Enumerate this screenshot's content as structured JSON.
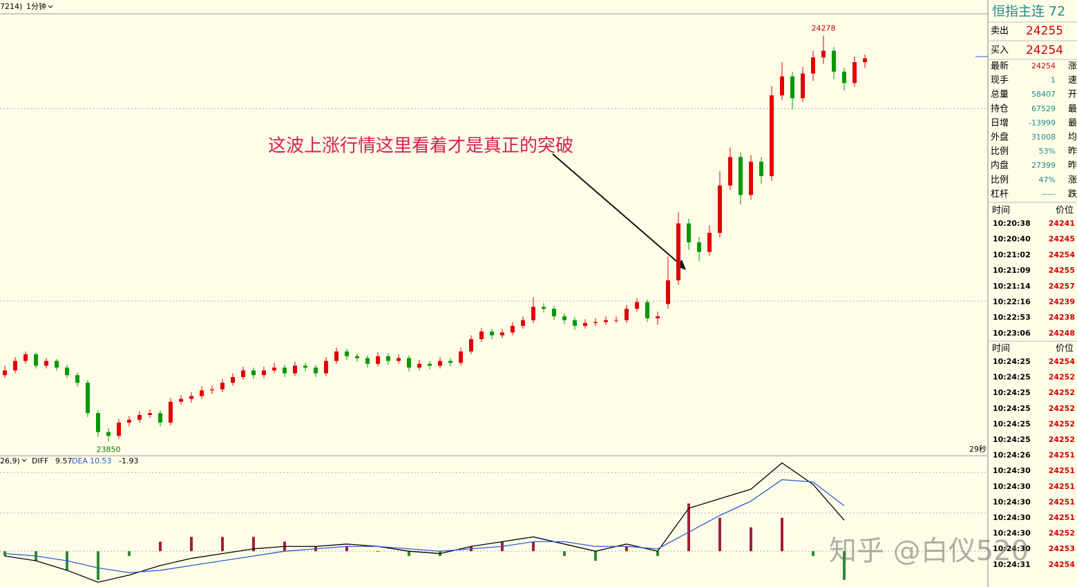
{
  "toolbar": {
    "code": "7214)",
    "period": "1分钟"
  },
  "chart_data": [
    {
      "type": "candlestick",
      "ylim": [
        23835,
        24301
      ],
      "ref_lines": [
        24201,
        23998
      ],
      "up_color": "#e00000",
      "down_color": "#009900",
      "annotation": "这波上涨行情这里看着才是真正的突破",
      "countdown": "29秒",
      "candles": [
        [
          23920,
          23930,
          23917,
          23925
        ],
        [
          23925,
          23939,
          23922,
          23935
        ],
        [
          23935,
          23945,
          23932,
          23942
        ],
        [
          23942,
          23944,
          23927,
          23930
        ],
        [
          23930,
          23938,
          23927,
          23935
        ],
        [
          23935,
          23937,
          23925,
          23928
        ],
        [
          23928,
          23931,
          23917,
          23920
        ],
        [
          23920,
          23923,
          23908,
          23912
        ],
        [
          23912,
          23915,
          23876,
          23880
        ],
        [
          23880,
          23883,
          23855,
          23860
        ],
        [
          23860,
          23864,
          23850,
          23856
        ],
        [
          23856,
          23874,
          23853,
          23870
        ],
        [
          23870,
          23877,
          23866,
          23873
        ],
        [
          23873,
          23882,
          23870,
          23878
        ],
        [
          23878,
          23884,
          23875,
          23880
        ],
        [
          23880,
          23883,
          23866,
          23870
        ],
        [
          23870,
          23896,
          23867,
          23892
        ],
        [
          23892,
          23899,
          23889,
          23895
        ],
        [
          23895,
          23902,
          23891,
          23898
        ],
        [
          23898,
          23908,
          23895,
          23904
        ],
        [
          23904,
          23909,
          23900,
          23905
        ],
        [
          23905,
          23916,
          23902,
          23912
        ],
        [
          23912,
          23922,
          23909,
          23918
        ],
        [
          23918,
          23929,
          23915,
          23925
        ],
        [
          23925,
          23928,
          23916,
          23920
        ],
        [
          23920,
          23929,
          23917,
          23925
        ],
        [
          23925,
          23933,
          23922,
          23928
        ],
        [
          23928,
          23931,
          23918,
          23922
        ],
        [
          23922,
          23934,
          23919,
          23930
        ],
        [
          23930,
          23933,
          23924,
          23928
        ],
        [
          23928,
          23931,
          23918,
          23922
        ],
        [
          23922,
          23939,
          23919,
          23935
        ],
        [
          23935,
          23949,
          23932,
          23945
        ],
        [
          23945,
          23948,
          23936,
          23940
        ],
        [
          23940,
          23943,
          23934,
          23938
        ],
        [
          23938,
          23941,
          23928,
          23932
        ],
        [
          23932,
          23944,
          23929,
          23940
        ],
        [
          23940,
          23943,
          23931,
          23935
        ],
        [
          23935,
          23942,
          23932,
          23938
        ],
        [
          23938,
          23941,
          23924,
          23928
        ],
        [
          23928,
          23936,
          23925,
          23932
        ],
        [
          23932,
          23935,
          23926,
          23930
        ],
        [
          23930,
          23939,
          23927,
          23935
        ],
        [
          23935,
          23938,
          23929,
          23933
        ],
        [
          23933,
          23949,
          23930,
          23945
        ],
        [
          23945,
          23962,
          23942,
          23958
        ],
        [
          23958,
          23970,
          23955,
          23966
        ],
        [
          23966,
          23969,
          23958,
          23962
        ],
        [
          23962,
          23969,
          23959,
          23965
        ],
        [
          23965,
          23976,
          23962,
          23972
        ],
        [
          23972,
          23982,
          23969,
          23978
        ],
        [
          23978,
          24002,
          23975,
          23992
        ],
        [
          23992,
          23996,
          23986,
          23990
        ],
        [
          23990,
          23993,
          23978,
          23982
        ],
        [
          23982,
          23985,
          23974,
          23978
        ],
        [
          23978,
          23981,
          23968,
          23972
        ],
        [
          23972,
          23979,
          23969,
          23975
        ],
        [
          23975,
          23980,
          23972,
          23976
        ],
        [
          23976,
          23982,
          23973,
          23978
        ],
        [
          23978,
          23982,
          23975,
          23978
        ],
        [
          23978,
          23994,
          23975,
          23990
        ],
        [
          23990,
          24001,
          23987,
          23997
        ],
        [
          23997,
          24000,
          23976,
          23980
        ],
        [
          23980,
          23987,
          23973,
          23982
        ],
        [
          23995,
          24045,
          23990,
          24020
        ],
        [
          24020,
          24092,
          24015,
          24080
        ],
        [
          24080,
          24085,
          24052,
          24060
        ],
        [
          24060,
          24066,
          24040,
          24050
        ],
        [
          24050,
          24078,
          24046,
          24070
        ],
        [
          24070,
          24135,
          24065,
          24120
        ],
        [
          24120,
          24160,
          24115,
          24150
        ],
        [
          24150,
          24155,
          24100,
          24110
        ],
        [
          24110,
          24152,
          24105,
          24145
        ],
        [
          24145,
          24150,
          24122,
          24130
        ],
        [
          24130,
          24225,
          24125,
          24215
        ],
        [
          24215,
          24250,
          24210,
          24235
        ],
        [
          24235,
          24240,
          24200,
          24212
        ],
        [
          24212,
          24245,
          24208,
          24238
        ],
        [
          24238,
          24262,
          24230,
          24255
        ],
        [
          24255,
          24278,
          24248,
          24262
        ],
        [
          24262,
          24266,
          24232,
          24240
        ],
        [
          24240,
          24244,
          24220,
          24228
        ],
        [
          24228,
          24256,
          24224,
          24250
        ],
        [
          24250,
          24258,
          24244,
          24254
        ]
      ]
    },
    {
      "type": "macd",
      "params": "26,9)",
      "ylim": [
        -15,
        40
      ],
      "ref_lines": [
        33,
        16,
        0
      ],
      "series": [
        {
          "name": "DIFF",
          "color": "#000000",
          "current": 9.57,
          "values": [
            -2,
            -4,
            -8,
            -13,
            -10,
            -6,
            -3,
            -1,
            1,
            2,
            2,
            3,
            2,
            0,
            -1,
            2,
            4,
            6,
            3,
            0,
            3,
            0,
            18,
            22,
            26,
            37,
            28,
            13
          ]
        },
        {
          "name": "DEA",
          "color": "#2a5bd7",
          "current": 10.53,
          "values": [
            -1,
            -2,
            -4,
            -7,
            -9,
            -8,
            -6,
            -4,
            -2,
            0,
            1,
            2,
            2,
            1,
            0,
            1,
            2,
            4,
            4,
            2,
            2,
            1,
            8,
            15,
            21,
            30,
            29,
            19
          ]
        }
      ],
      "hist": {
        "current": -1.93,
        "up_color": "#a0203a",
        "down_color": "#2e8b2e",
        "values": [
          -2,
          -4,
          -8,
          -12,
          -2,
          4,
          6,
          6,
          6,
          4,
          2,
          2,
          0,
          -2,
          -2,
          2,
          4,
          4,
          -2,
          -4,
          2,
          -2,
          20,
          14,
          10,
          14,
          -2,
          -12
        ]
      }
    }
  ],
  "quote": {
    "title": "恒指主连 72",
    "ask_label": "卖出",
    "ask": "24255",
    "bid_label": "买入",
    "bid": "24254",
    "rows": [
      [
        "最新",
        "24254",
        "涨"
      ],
      [
        "现手",
        "1",
        "速"
      ],
      [
        "总量",
        "58407",
        "开"
      ],
      [
        "持仓",
        "67529",
        "最"
      ],
      [
        "日增",
        "-13999",
        "最"
      ],
      [
        "外盘",
        "31008",
        "均"
      ],
      [
        "比例",
        "53%",
        "昨"
      ],
      [
        "内盘",
        "27399",
        "昨"
      ],
      [
        "比例",
        "47%",
        "涨"
      ],
      [
        "杠杆",
        "-----",
        "跌"
      ]
    ]
  },
  "ticks1": {
    "header": [
      "时间",
      "价位"
    ],
    "rows": [
      [
        "10:20:38",
        "24241"
      ],
      [
        "10:20:40",
        "24245"
      ],
      [
        "10:21:02",
        "24254"
      ],
      [
        "10:21:09",
        "24255"
      ],
      [
        "10:21:14",
        "24257"
      ],
      [
        "10:22:16",
        "24239"
      ],
      [
        "10:22:53",
        "24238"
      ],
      [
        "10:23:06",
        "24248"
      ]
    ]
  },
  "ticks2": {
    "header": [
      "时间",
      "价位"
    ],
    "rows": [
      [
        "10:24:25",
        "24254"
      ],
      [
        "10:24:25",
        "24252"
      ],
      [
        "10:24:25",
        "24252"
      ],
      [
        "10:24:25",
        "24252"
      ],
      [
        "10:24:25",
        "24252"
      ],
      [
        "10:24:25",
        "24252"
      ],
      [
        "10:24:26",
        "24251"
      ],
      [
        "10:24:30",
        "24251"
      ],
      [
        "10:24:30",
        "24251"
      ],
      [
        "10:24:30",
        "24251"
      ],
      [
        "10:24:30",
        "24251"
      ],
      [
        "10:24:30",
        "24252"
      ],
      [
        "10:24:30",
        "24253"
      ],
      [
        "10:24:31",
        "24254"
      ]
    ]
  },
  "watermark": "知乎 @白仪520"
}
